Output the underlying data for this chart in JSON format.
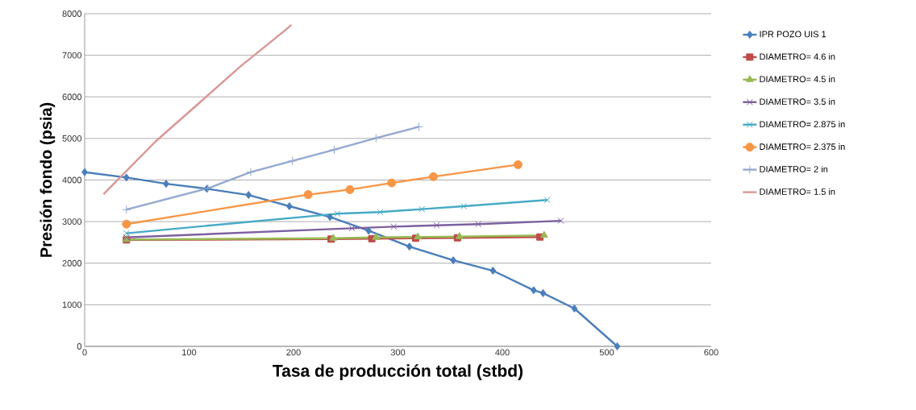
{
  "chart_data": {
    "type": "line",
    "xlabel": "Tasa de producción total (stbd)",
    "ylabel": "Presión fondo (psia)",
    "xlim": [
      0,
      600
    ],
    "xticks": [
      0,
      100,
      200,
      300,
      400,
      500,
      600
    ],
    "ylim": [
      0,
      8000
    ],
    "yticks": [
      0,
      1000,
      2000,
      3000,
      4000,
      5000,
      6000,
      7000,
      8000
    ],
    "grid": "y",
    "legend": "right",
    "series": [
      {
        "name": "IPR POZO UIS 1",
        "color": "#4a7ebb",
        "marker": "diamond",
        "x": [
          0,
          40,
          78,
          117,
          157,
          196,
          235,
          272,
          311,
          353,
          391,
          430,
          439,
          469,
          510
        ],
        "values": [
          4190,
          4060,
          3910,
          3790,
          3640,
          3370,
          3110,
          2780,
          2400,
          2070,
          1820,
          1350,
          1280,
          910,
          0
        ]
      },
      {
        "name": "DIAMETRO= 4.6 in",
        "color": "#be4b48",
        "marker": "square",
        "x": [
          40,
          236,
          275,
          317,
          357,
          436
        ],
        "values": [
          2560,
          2580,
          2590,
          2600,
          2610,
          2630
        ]
      },
      {
        "name": "DIAMETRO= 4.5 in",
        "color": "#98b954",
        "marker": "triangle",
        "x": [
          40,
          238,
          279,
          319,
          359,
          440
        ],
        "values": [
          2570,
          2600,
          2620,
          2630,
          2640,
          2670
        ]
      },
      {
        "name": "DIAMETRO= 3.5 in",
        "color": "#7d60a0",
        "marker": "cross",
        "x": [
          40,
          256,
          296,
          337,
          377,
          456
        ],
        "values": [
          2620,
          2840,
          2880,
          2910,
          2940,
          3020
        ]
      },
      {
        "name": "DIAMETRO= 2.875 in",
        "color": "#46aac5",
        "marker": "cross",
        "x": [
          40,
          242,
          283,
          323,
          363,
          443
        ],
        "values": [
          2720,
          3190,
          3230,
          3300,
          3370,
          3520
        ]
      },
      {
        "name": "DIAMETRO= 2.375 in",
        "color": "#f79646",
        "marker": "circle",
        "x": [
          40,
          214,
          254,
          294,
          334,
          415
        ],
        "values": [
          2940,
          3650,
          3770,
          3930,
          4080,
          4370
        ]
      },
      {
        "name": "DIAMETRO= 2 in",
        "color": "#93a9cf",
        "marker": "plus",
        "x": [
          40,
          118,
          159,
          199,
          239,
          279,
          320
        ],
        "values": [
          3290,
          3800,
          4190,
          4460,
          4730,
          5010,
          5280
        ]
      },
      {
        "name": "DIAMETRO= 1.5 in",
        "color": "#d99694",
        "marker": "none",
        "x": [
          18,
          68,
          110,
          149,
          191,
          198
        ],
        "values": [
          3660,
          4930,
          5860,
          6730,
          7580,
          7730
        ]
      }
    ]
  }
}
